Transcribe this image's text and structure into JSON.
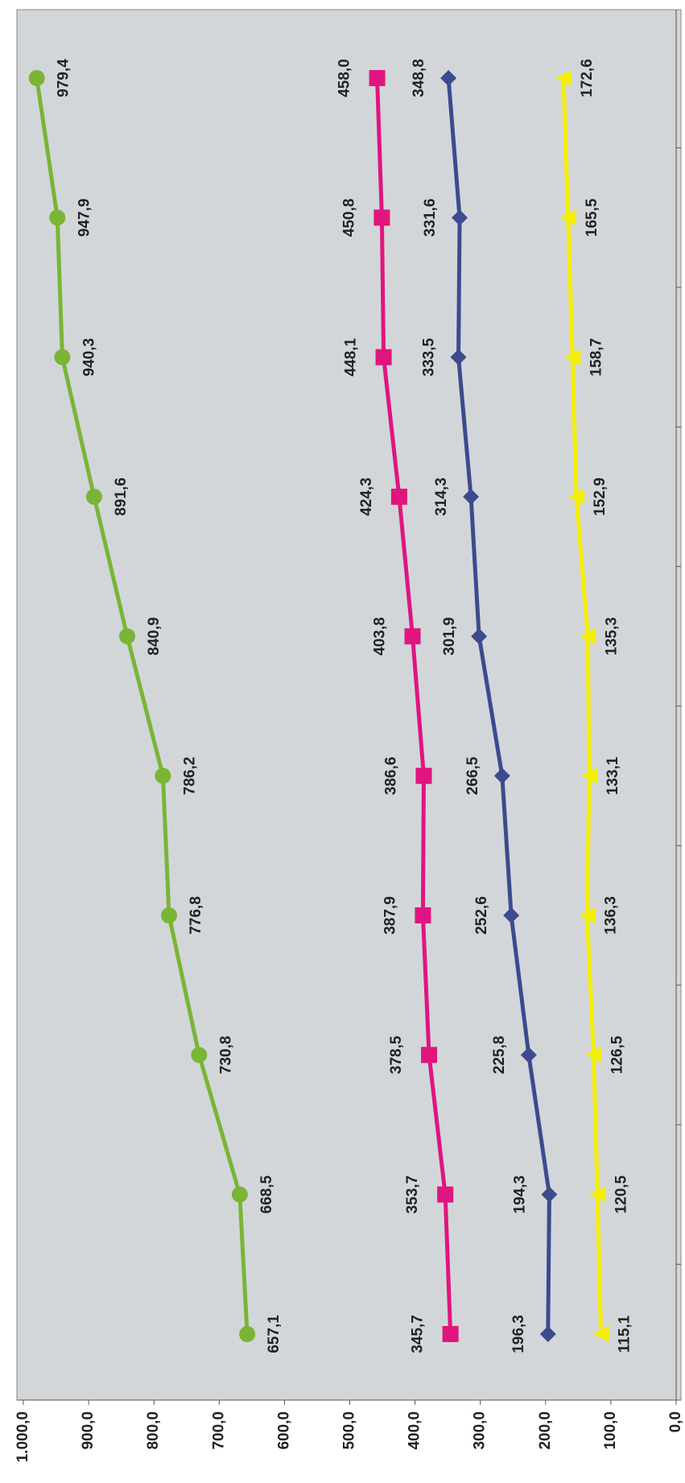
{
  "chart_data": {
    "type": "line",
    "orientation": "horizontal-values",
    "categories": [
      null,
      null,
      null,
      null,
      null,
      null,
      null,
      null,
      null,
      null
    ],
    "ylim": [
      0,
      1000
    ],
    "yticks": [
      {
        "value": 0,
        "label": "0,0"
      },
      {
        "value": 100,
        "label": "100,0"
      },
      {
        "value": 200,
        "label": "200,0"
      },
      {
        "value": 300,
        "label": "300,0"
      },
      {
        "value": 400,
        "label": "400,0"
      },
      {
        "value": 500,
        "label": "500,0"
      },
      {
        "value": 600,
        "label": "600,0"
      },
      {
        "value": 700,
        "label": "700,0"
      },
      {
        "value": 800,
        "label": "800,0"
      },
      {
        "value": 900,
        "label": "900,0"
      },
      {
        "value": 1000,
        "label": "1.000,0"
      }
    ],
    "grid": false,
    "series": [
      {
        "color": "#7ab536",
        "marker": "circle",
        "values": [
          657.1,
          668.5,
          730.8,
          776.8,
          786.2,
          840.9,
          891.6,
          940.3,
          947.9,
          979.4
        ],
        "value_labels": [
          "657,1",
          "668,5",
          "730,8",
          "776,8",
          "786,2",
          "840,9",
          "891,6",
          "940,3",
          "947,9",
          "979,4"
        ]
      },
      {
        "color": "#e0157f",
        "marker": "square",
        "values": [
          345.7,
          353.7,
          378.5,
          387.9,
          386.6,
          403.8,
          424.3,
          448.1,
          450.8,
          458.0
        ],
        "value_labels": [
          "345,7",
          "353,7",
          "378,5",
          "387,9",
          "386,6",
          "403,8",
          "424,3",
          "448,1",
          "450,8",
          "458,0"
        ]
      },
      {
        "color": "#3b4b8e",
        "marker": "diamond",
        "values": [
          196.3,
          194.3,
          225.8,
          252.6,
          266.5,
          301.9,
          314.3,
          333.5,
          331.6,
          348.8
        ],
        "value_labels": [
          "196,3",
          "194,3",
          "225,8",
          "252,6",
          "266,5",
          "301,9",
          "314,3",
          "333,5",
          "331,6",
          "348,8"
        ]
      },
      {
        "color": "#f5f000",
        "marker": "triangle",
        "values": [
          115.1,
          120.5,
          126.5,
          136.3,
          133.1,
          135.3,
          152.9,
          158.7,
          165.5,
          172.6
        ],
        "value_labels": [
          "115,1",
          "120,5",
          "126,5",
          "136,3",
          "133,1",
          "135,3",
          "152,9",
          "158,7",
          "165,5",
          "172,6"
        ]
      }
    ]
  }
}
